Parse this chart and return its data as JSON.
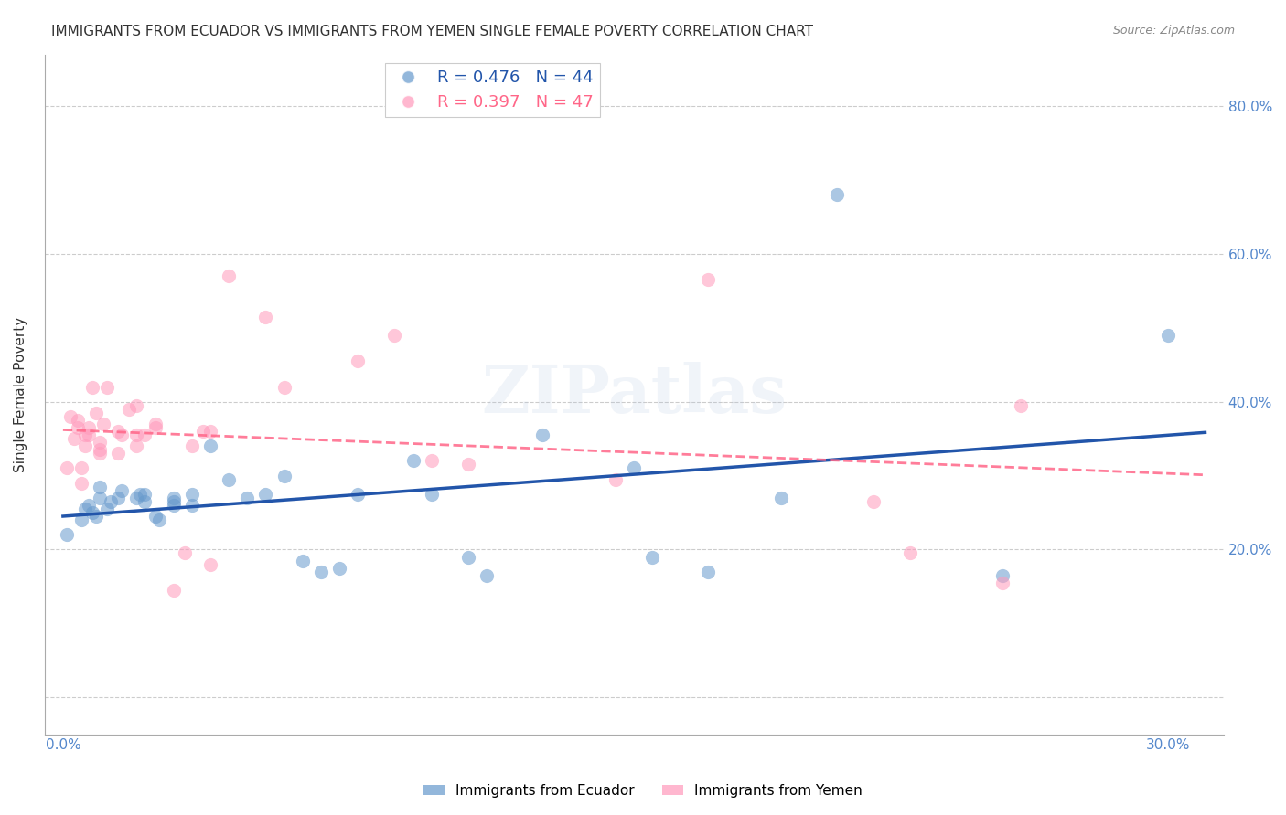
{
  "title": "IMMIGRANTS FROM ECUADOR VS IMMIGRANTS FROM YEMEN SINGLE FEMALE POVERTY CORRELATION CHART",
  "source": "Source: ZipAtlas.com",
  "ylabel": "Single Female Poverty",
  "xlim": [
    -0.005,
    0.315
  ],
  "ylim": [
    -0.05,
    0.87
  ],
  "legend_r_ecuador": "R = 0.476",
  "legend_n_ecuador": "N = 44",
  "legend_r_yemen": "R = 0.397",
  "legend_n_yemen": "N = 47",
  "ecuador_color": "#6699CC",
  "yemen_color": "#FF99BB",
  "ecuador_line_color": "#2255AA",
  "yemen_line_color": "#FF6688",
  "watermark": "ZIPatlas",
  "ecuador_scatter": [
    [
      0.001,
      0.22
    ],
    [
      0.005,
      0.24
    ],
    [
      0.006,
      0.255
    ],
    [
      0.007,
      0.26
    ],
    [
      0.008,
      0.25
    ],
    [
      0.009,
      0.245
    ],
    [
      0.01,
      0.27
    ],
    [
      0.01,
      0.285
    ],
    [
      0.012,
      0.255
    ],
    [
      0.013,
      0.265
    ],
    [
      0.015,
      0.27
    ],
    [
      0.016,
      0.28
    ],
    [
      0.02,
      0.27
    ],
    [
      0.021,
      0.275
    ],
    [
      0.022,
      0.265
    ],
    [
      0.022,
      0.275
    ],
    [
      0.025,
      0.245
    ],
    [
      0.026,
      0.24
    ],
    [
      0.03,
      0.27
    ],
    [
      0.03,
      0.265
    ],
    [
      0.03,
      0.26
    ],
    [
      0.035,
      0.275
    ],
    [
      0.035,
      0.26
    ],
    [
      0.04,
      0.34
    ],
    [
      0.045,
      0.295
    ],
    [
      0.05,
      0.27
    ],
    [
      0.055,
      0.275
    ],
    [
      0.06,
      0.3
    ],
    [
      0.065,
      0.185
    ],
    [
      0.07,
      0.17
    ],
    [
      0.075,
      0.175
    ],
    [
      0.08,
      0.275
    ],
    [
      0.095,
      0.32
    ],
    [
      0.1,
      0.275
    ],
    [
      0.11,
      0.19
    ],
    [
      0.115,
      0.165
    ],
    [
      0.13,
      0.355
    ],
    [
      0.155,
      0.31
    ],
    [
      0.16,
      0.19
    ],
    [
      0.175,
      0.17
    ],
    [
      0.195,
      0.27
    ],
    [
      0.21,
      0.68
    ],
    [
      0.255,
      0.165
    ],
    [
      0.3,
      0.49
    ]
  ],
  "yemen_scatter": [
    [
      0.001,
      0.31
    ],
    [
      0.002,
      0.38
    ],
    [
      0.003,
      0.35
    ],
    [
      0.004,
      0.365
    ],
    [
      0.004,
      0.375
    ],
    [
      0.005,
      0.29
    ],
    [
      0.005,
      0.31
    ],
    [
      0.006,
      0.34
    ],
    [
      0.006,
      0.355
    ],
    [
      0.007,
      0.355
    ],
    [
      0.007,
      0.365
    ],
    [
      0.008,
      0.42
    ],
    [
      0.009,
      0.385
    ],
    [
      0.01,
      0.335
    ],
    [
      0.01,
      0.345
    ],
    [
      0.01,
      0.33
    ],
    [
      0.011,
      0.37
    ],
    [
      0.012,
      0.42
    ],
    [
      0.015,
      0.36
    ],
    [
      0.015,
      0.33
    ],
    [
      0.016,
      0.355
    ],
    [
      0.018,
      0.39
    ],
    [
      0.02,
      0.355
    ],
    [
      0.02,
      0.34
    ],
    [
      0.02,
      0.395
    ],
    [
      0.022,
      0.355
    ],
    [
      0.025,
      0.365
    ],
    [
      0.025,
      0.37
    ],
    [
      0.03,
      0.145
    ],
    [
      0.033,
      0.195
    ],
    [
      0.035,
      0.34
    ],
    [
      0.038,
      0.36
    ],
    [
      0.04,
      0.18
    ],
    [
      0.04,
      0.36
    ],
    [
      0.045,
      0.57
    ],
    [
      0.055,
      0.515
    ],
    [
      0.06,
      0.42
    ],
    [
      0.08,
      0.455
    ],
    [
      0.09,
      0.49
    ],
    [
      0.1,
      0.32
    ],
    [
      0.11,
      0.315
    ],
    [
      0.15,
      0.295
    ],
    [
      0.175,
      0.565
    ],
    [
      0.22,
      0.265
    ],
    [
      0.23,
      0.195
    ],
    [
      0.255,
      0.155
    ],
    [
      0.26,
      0.395
    ]
  ]
}
